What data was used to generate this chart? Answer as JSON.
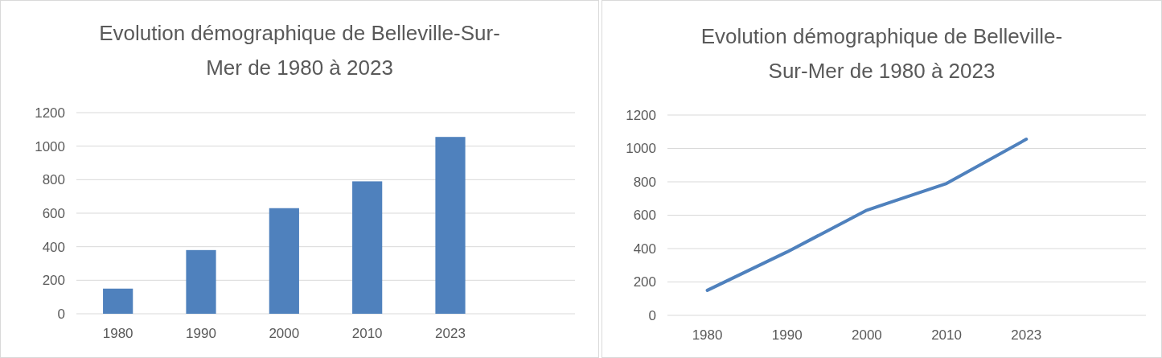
{
  "chart_data": [
    {
      "type": "bar",
      "title": "Evolution démographique de Belleville-Sur-Mer de 1980 à 2023",
      "categories": [
        "1980",
        "1990",
        "2000",
        "2010",
        "2023",
        null
      ],
      "values": [
        150,
        380,
        630,
        790,
        1055,
        null
      ],
      "color": "#4f81bd",
      "ylim": [
        0,
        1200
      ],
      "yticks": [
        0,
        200,
        400,
        600,
        800,
        1000,
        1200
      ],
      "grid": "y"
    },
    {
      "type": "line",
      "title": "Evolution démographique de Belleville-Sur-Mer de 1980 à 2023",
      "categories": [
        "1980",
        "1990",
        "2000",
        "2010",
        "2023",
        null
      ],
      "values": [
        150,
        380,
        630,
        790,
        1055,
        null
      ],
      "color": "#4f81bd",
      "ylim": [
        0,
        1200
      ],
      "yticks": [
        0,
        200,
        400,
        600,
        800,
        1000,
        1200
      ],
      "grid": "y",
      "marker": "none"
    }
  ]
}
